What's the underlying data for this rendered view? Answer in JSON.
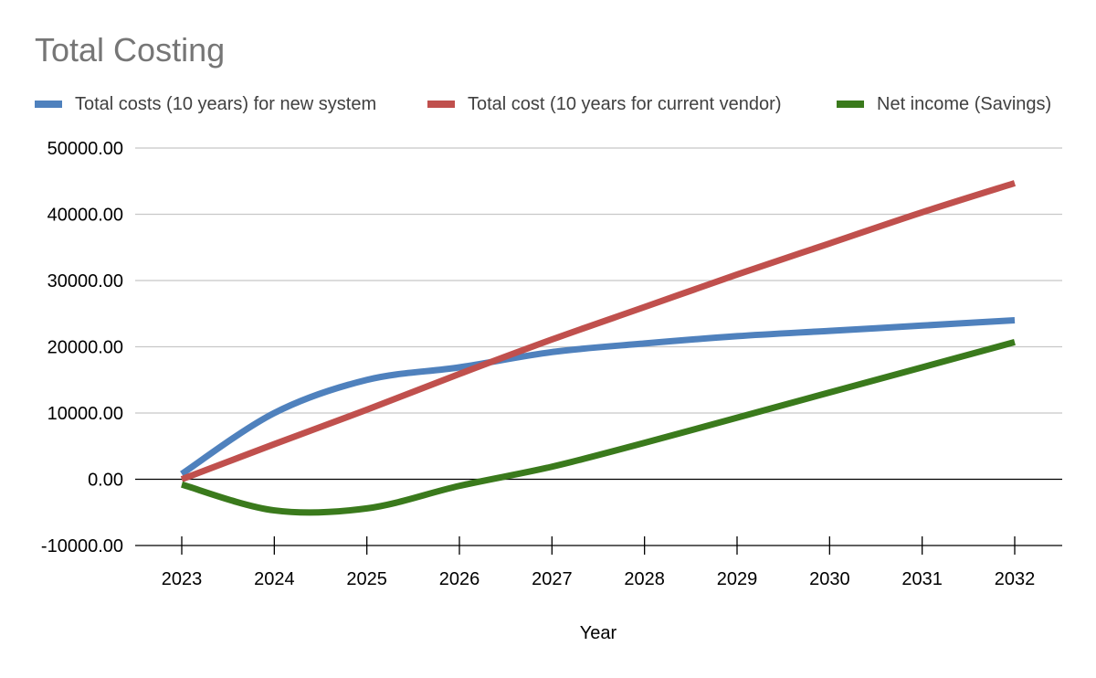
{
  "chart_data": {
    "type": "line",
    "title": "Total Costing",
    "xlabel": "Year",
    "ylabel": "",
    "categories": [
      "2023",
      "2024",
      "2025",
      "2026",
      "2027",
      "2028",
      "2029",
      "2030",
      "2031",
      "2032"
    ],
    "ylim": [
      -10000,
      50000
    ],
    "yticks": [
      "50000.00",
      "40000.00",
      "30000.00",
      "20000.00",
      "10000.00",
      "0.00",
      "-10000.00"
    ],
    "grid": true,
    "legend_position": "top",
    "series": [
      {
        "name": "Total costs (10 years) for new system",
        "color": "#4f81bd",
        "values": [
          800,
          10000,
          15000,
          16900,
          19200,
          20500,
          21600,
          22400,
          23200,
          24000
        ]
      },
      {
        "name": "Total cost (10 years for current vendor)",
        "color": "#c0504d",
        "values": [
          0,
          5300,
          10500,
          15900,
          21100,
          26000,
          30900,
          35600,
          40300,
          44700
        ]
      },
      {
        "name": "Net income (Savings)",
        "color": "#3a7a1c",
        "values": [
          -800,
          -4700,
          -4400,
          -1000,
          1900,
          5500,
          9300,
          13100,
          16900,
          20700
        ]
      }
    ]
  }
}
